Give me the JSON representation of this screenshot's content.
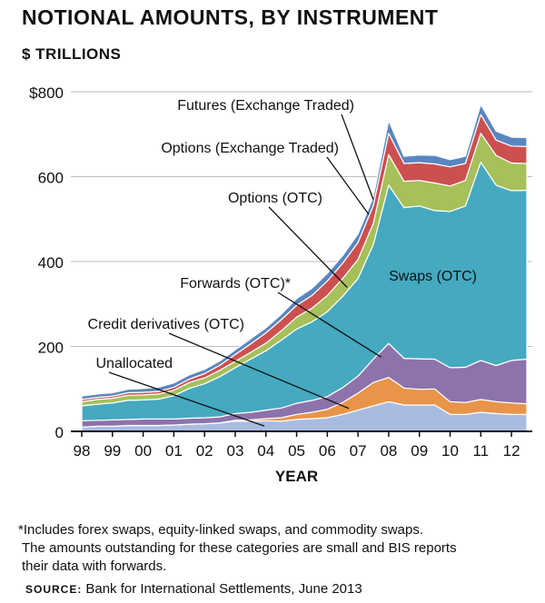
{
  "title": "NOTIONAL AMOUNTS, BY INSTRUMENT",
  "subtitle": "$ TRILLIONS",
  "footnote": [
    "*Includes forex swaps, equity-linked swaps, and commodity swaps.",
    "The amounts outstanding for these categories are small and BIS reports",
    "their data with forwards."
  ],
  "source_label": "SOURCE:",
  "source_text": "Bank for International Settlements, June 2013",
  "chart_data": {
    "type": "area",
    "stacked": true,
    "xlabel": "YEAR",
    "ylabel": "",
    "ylim": [
      0,
      800
    ],
    "y_ticks": [
      0,
      200,
      400,
      600,
      800
    ],
    "y_tick_labels": [
      "0",
      "200",
      "400",
      "600",
      "$800"
    ],
    "x_range": [
      1998,
      2012.5
    ],
    "x_ticks": [
      1998,
      1999,
      2000,
      2001,
      2002,
      2003,
      2004,
      2005,
      2006,
      2007,
      2008,
      2009,
      2010,
      2011,
      2012
    ],
    "x_tick_labels": [
      "98",
      "99",
      "00",
      "01",
      "02",
      "03",
      "04",
      "05",
      "06",
      "07",
      "08",
      "09",
      "10",
      "11",
      "12"
    ],
    "grid": "horizontal",
    "x": [
      1998.0,
      1998.5,
      1999.0,
      1999.5,
      2000.0,
      2000.5,
      2001.0,
      2001.5,
      2002.0,
      2002.5,
      2003.0,
      2003.5,
      2004.0,
      2004.5,
      2005.0,
      2005.5,
      2006.0,
      2006.5,
      2007.0,
      2007.5,
      2008.0,
      2008.5,
      2009.0,
      2009.5,
      2010.0,
      2010.5,
      2011.0,
      2011.5,
      2012.0,
      2012.5
    ],
    "series": [
      {
        "name": "Unallocated",
        "color": "#a9bcdf",
        "values": [
          10,
          12,
          12,
          14,
          14,
          14,
          15,
          17,
          18,
          20,
          24,
          24,
          25,
          24,
          28,
          30,
          32,
          40,
          50,
          60,
          70,
          62,
          62,
          62,
          40,
          40,
          45,
          42,
          40,
          40
        ]
      },
      {
        "name": "Credit derivatives (OTC)",
        "color": "#e8954a",
        "values": [
          0,
          0,
          0,
          0,
          0,
          0,
          0,
          0,
          0,
          0,
          2,
          3,
          5,
          8,
          12,
          15,
          20,
          28,
          40,
          55,
          57,
          40,
          37,
          38,
          30,
          28,
          30,
          28,
          27,
          25
        ]
      },
      {
        "name": "Forwards (OTC)*",
        "color": "#8d73ab",
        "values": [
          15,
          14,
          15,
          14,
          15,
          15,
          14,
          14,
          14,
          14,
          16,
          18,
          20,
          23,
          26,
          28,
          30,
          35,
          40,
          55,
          80,
          70,
          72,
          70,
          80,
          83,
          92,
          85,
          100,
          105
        ]
      },
      {
        "name": "Swaps (OTC)",
        "color": "#45a9c0",
        "values": [
          35,
          38,
          40,
          45,
          45,
          47,
          55,
          70,
          80,
          95,
          108,
          125,
          140,
          160,
          175,
          185,
          200,
          215,
          230,
          270,
          373,
          355,
          360,
          350,
          368,
          380,
          467,
          425,
          400,
          398
        ]
      },
      {
        "name": "Options (OTC)",
        "color": "#a6c05a",
        "values": [
          10,
          11,
          11,
          12,
          12,
          12,
          13,
          14,
          14,
          15,
          15,
          16,
          18,
          22,
          28,
          32,
          38,
          42,
          45,
          50,
          72,
          62,
          60,
          65,
          60,
          60,
          68,
          70,
          65,
          63
        ]
      },
      {
        "name": "Options (Exchange Traded)",
        "color": "#cc5050",
        "values": [
          5,
          5,
          5,
          6,
          6,
          6,
          7,
          8,
          10,
          12,
          16,
          20,
          24,
          26,
          28,
          30,
          34,
          36,
          40,
          42,
          50,
          42,
          42,
          45,
          45,
          40,
          44,
          36,
          40,
          40
        ]
      },
      {
        "name": "Futures (Exchange Traded)",
        "color": "#5a86bf",
        "values": [
          8,
          8,
          8,
          8,
          9,
          10,
          10,
          10,
          10,
          10,
          11,
          12,
          12,
          13,
          16,
          17,
          18,
          18,
          20,
          20,
          30,
          17,
          18,
          20,
          17,
          17,
          24,
          21,
          21,
          21
        ]
      }
    ],
    "labels": {
      "futures": "Futures (Exchange Traded)",
      "options_et": "Options (Exchange Traded)",
      "options_otc": "Options (OTC)",
      "forwards": "Forwards (OTC)*",
      "credit": "Credit derivatives (OTC)",
      "unallocated": "Unallocated",
      "swaps": "Swaps (OTC)"
    }
  }
}
